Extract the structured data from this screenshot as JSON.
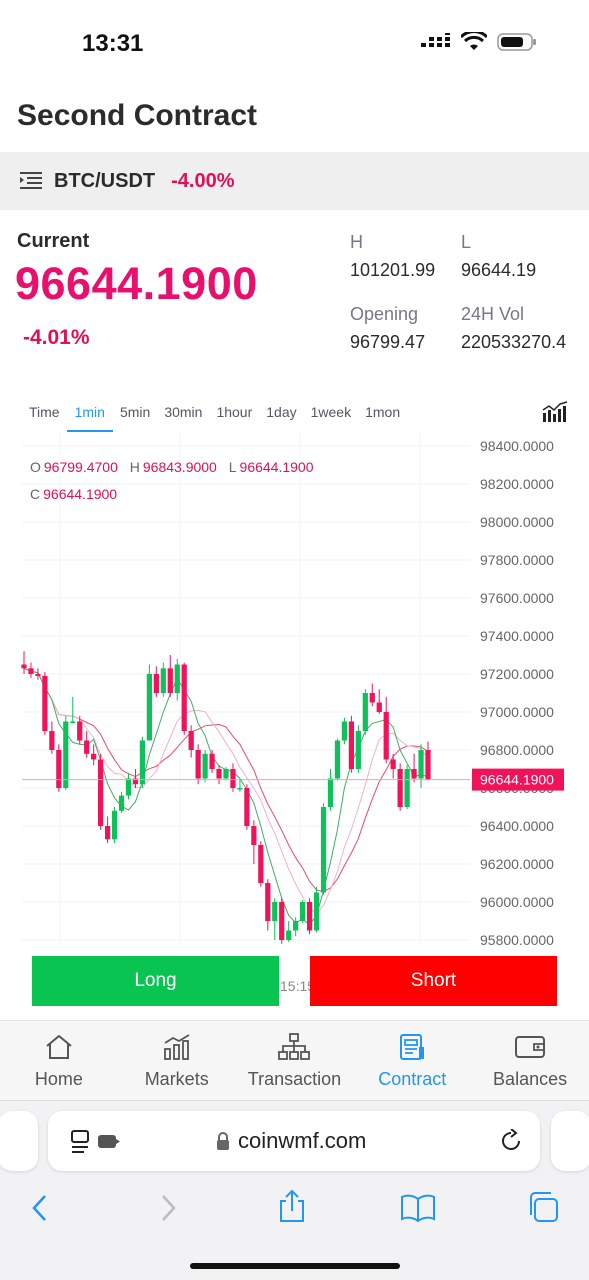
{
  "status_bar": {
    "time": "13:31"
  },
  "page": {
    "title": "Second Contract"
  },
  "pair": {
    "name": "BTC/USDT",
    "change": "-4.00%"
  },
  "current": {
    "label": "Current",
    "price": "96644.1900",
    "change": "-4.01%"
  },
  "stats": {
    "high_label": "H",
    "high_value": "101201.99",
    "low_label": "L",
    "low_value": "96644.19",
    "open_label": "Opening",
    "open_value": "96799.47",
    "vol_label": "24H Vol",
    "vol_value": "220533270.4"
  },
  "tabs": [
    "Time",
    "1min",
    "5min",
    "30min",
    "1hour",
    "1day",
    "1week",
    "1mon"
  ],
  "active_tab": "1min",
  "ohlc": {
    "o_label": "O",
    "o_value": "96799.4700",
    "h_label": "H",
    "h_value": "96843.9000",
    "l_label": "L",
    "l_value": "96644.1900",
    "c_label": "C",
    "c_value": "96644.1900"
  },
  "chart_data": {
    "type": "candlestick",
    "y_ticks": [
      "98400.0000",
      "98200.0000",
      "98000.0000",
      "97800.0000",
      "97600.0000",
      "97400.0000",
      "97200.0000",
      "97000.0000",
      "96800.0000",
      "96600.0000",
      "96400.0000",
      "96200.0000",
      "96000.0000",
      "95800.0000"
    ],
    "ylim": [
      95800,
      98400
    ],
    "current_price_label": "96644.1900",
    "current_price": 96644.19,
    "x_label_partial": "15:15",
    "candles": [
      [
        97250,
        97230,
        97320,
        97200
      ],
      [
        97230,
        97200,
        97260,
        97180
      ],
      [
        97200,
        97190,
        97230,
        97170
      ],
      [
        97190,
        96900,
        97210,
        96880
      ],
      [
        96900,
        96800,
        96950,
        96780
      ],
      [
        96800,
        96600,
        96830,
        96580
      ],
      [
        96600,
        96950,
        96980,
        96590
      ],
      [
        96950,
        96950,
        97080,
        96940
      ],
      [
        96950,
        96850,
        96980,
        96830
      ],
      [
        96850,
        96780,
        96900,
        96760
      ],
      [
        96780,
        96750,
        96830,
        96720
      ],
      [
        96750,
        96400,
        96780,
        96380
      ],
      [
        96400,
        96330,
        96450,
        96310
      ],
      [
        96330,
        96480,
        96500,
        96310
      ],
      [
        96480,
        96560,
        96580,
        96470
      ],
      [
        96560,
        96650,
        96680,
        96540
      ],
      [
        96650,
        96620,
        96700,
        96600
      ],
      [
        96620,
        96850,
        96870,
        96600
      ],
      [
        96850,
        97200,
        97250,
        97100
      ],
      [
        97200,
        97100,
        97240,
        97080
      ],
      [
        97100,
        97230,
        97260,
        97080
      ],
      [
        97230,
        97100,
        97300,
        97080
      ],
      [
        97100,
        97250,
        97280,
        97060
      ],
      [
        97250,
        96900,
        97260,
        96880
      ],
      [
        96900,
        96800,
        96930,
        96760
      ],
      [
        96800,
        96650,
        96830,
        96620
      ],
      [
        96650,
        96780,
        96800,
        96630
      ],
      [
        96780,
        96700,
        96800,
        96680
      ],
      [
        96700,
        96650,
        96720,
        96620
      ],
      [
        96650,
        96700,
        96710,
        96640
      ],
      [
        96700,
        96600,
        96730,
        96580
      ],
      [
        96600,
        96600,
        96650,
        96580
      ],
      [
        96600,
        96400,
        96620,
        96380
      ],
      [
        96400,
        96300,
        96430,
        96200
      ],
      [
        96300,
        96100,
        96320,
        96080
      ],
      [
        96100,
        95900,
        96120,
        95850
      ],
      [
        95900,
        96000,
        96020,
        95800
      ],
      [
        96000,
        95800,
        96020,
        95780
      ],
      [
        95800,
        95850,
        95900,
        95790
      ],
      [
        95850,
        95900,
        95920,
        95820
      ],
      [
        95900,
        96000,
        96010,
        95890
      ],
      [
        96000,
        95850,
        96020,
        95830
      ],
      [
        95850,
        96050,
        96080,
        95840
      ],
      [
        96050,
        96500,
        96520,
        96040
      ],
      [
        96500,
        96650,
        96700,
        96480
      ],
      [
        96650,
        96850,
        96860,
        96640
      ],
      [
        96850,
        96950,
        96970,
        96830
      ],
      [
        96950,
        96700,
        96980,
        96680
      ],
      [
        96700,
        96900,
        96930,
        96680
      ],
      [
        96900,
        97100,
        97120,
        96880
      ],
      [
        97100,
        97050,
        97150,
        97030
      ],
      [
        97050,
        97000,
        97120,
        96990
      ],
      [
        97000,
        96750,
        97080,
        96730
      ],
      [
        96750,
        96700,
        96780,
        96650
      ],
      [
        96700,
        96500,
        96730,
        96480
      ],
      [
        96500,
        96700,
        96720,
        96490
      ],
      [
        96700,
        96650,
        96780,
        96630
      ],
      [
        96650,
        96800,
        96830,
        96600
      ],
      [
        96800,
        96644,
        96844,
        96644
      ]
    ]
  },
  "buttons": {
    "long": "Long",
    "short": "Short"
  },
  "nav": {
    "items": [
      {
        "label": "Home",
        "icon": "home-icon"
      },
      {
        "label": "Markets",
        "icon": "markets-icon"
      },
      {
        "label": "Transaction",
        "icon": "transaction-icon"
      },
      {
        "label": "Contract",
        "icon": "contract-icon"
      },
      {
        "label": "Balances",
        "icon": "wallet-icon"
      }
    ],
    "active": "Contract"
  },
  "browser": {
    "url": "coinwmf.com"
  },
  "colors": {
    "up": "#0ec15a",
    "down": "#f0135a",
    "accent": "#2196f3",
    "long": "#09c451",
    "short": "#ff0000",
    "price_pink": "#e8106c"
  }
}
